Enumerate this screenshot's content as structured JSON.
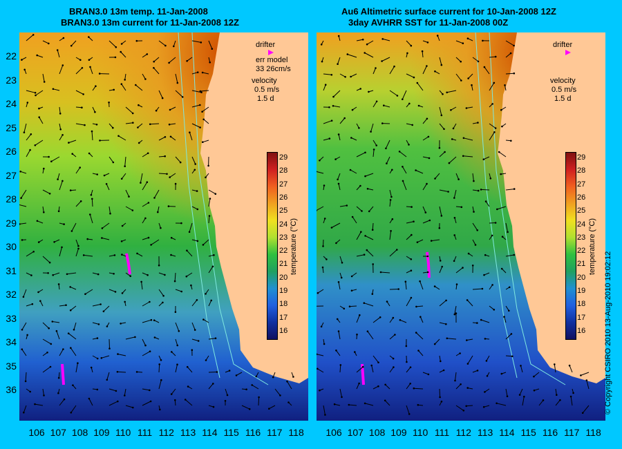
{
  "left_panel": {
    "title_line1": "BRAN3.0 13m temp. 11-Jan-2008",
    "title_line2": "BRAN3.0 13m current for 11-Jan-2008 12Z",
    "legend": {
      "drifter": "drifter",
      "err_model": "err model",
      "err_value": "33 26cm/s",
      "velocity": "velocity",
      "velocity_value": "0.5 m/s",
      "duration": "1.5 d"
    },
    "colorbar_title": "temperature (°C)"
  },
  "right_panel": {
    "title_line1": "Au6 Altimetric surface current for 10-Jan-2008 12Z",
    "title_line2": "3day AVHRR SST for 11-Jan-2008 00Z",
    "legend": {
      "drifter": "drifter",
      "velocity": "velocity",
      "velocity_value": "0.5 m/s",
      "duration": "1.5 d"
    },
    "colorbar_title": "temperature (°C)"
  },
  "y_axis_labels": [
    "22",
    "23",
    "24",
    "25",
    "26",
    "27",
    "28",
    "29",
    "30",
    "31",
    "32",
    "33",
    "34",
    "35",
    "36"
  ],
  "x_axis_labels": [
    "106",
    "107",
    "108",
    "109",
    "110",
    "111",
    "112",
    "113",
    "114",
    "115",
    "116",
    "117",
    "118"
  ],
  "colorbar_ticks": [
    "29",
    "28",
    "27",
    "26",
    "25",
    "24",
    "23",
    "22",
    "21",
    "20",
    "19",
    "18",
    "17",
    "16"
  ],
  "copyright": "© Copyright CSIRO 2010   13-Aug-2010 19:02:12",
  "colors": {
    "background": "#00c8ff",
    "land": "#ffc896",
    "drifter": "#ff00ff",
    "contour": "#7fe8e0"
  }
}
